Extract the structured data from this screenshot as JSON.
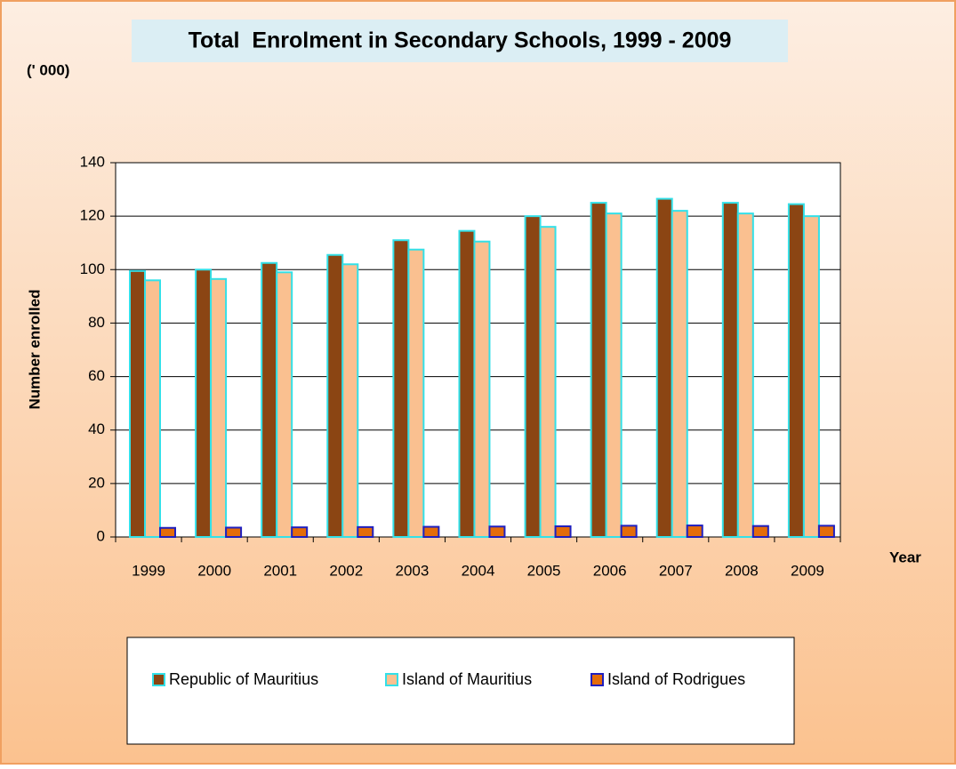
{
  "chart_data": {
    "type": "bar",
    "title": "Total  Enrolment in Secondary Schools, 1999 - 2009",
    "unit_label": "(' 000)",
    "y_label": "Number enrolled",
    "x_label": "Year",
    "categories": [
      "1999",
      "2000",
      "2001",
      "2002",
      "2003",
      "2004",
      "2005",
      "2006",
      "2007",
      "2008",
      "2009"
    ],
    "series": [
      {
        "name": "Republic of Mauritius",
        "color": "#8b4513",
        "edgecolor": "#33e0e8",
        "values": [
          99.5,
          100,
          102.5,
          105.5,
          111,
          114.5,
          120,
          125,
          126.5,
          125,
          124.5
        ]
      },
      {
        "name": "Island of Mauritius",
        "color": "#fac090",
        "edgecolor": "#33e0e8",
        "values": [
          96,
          96.5,
          99,
          102,
          107.5,
          110.5,
          116,
          121,
          122,
          121,
          120
        ]
      },
      {
        "name": "Island of Rodrigues",
        "color": "#e46c0a",
        "edgecolor": "#1f1fbf",
        "values": [
          3.4,
          3.5,
          3.6,
          3.7,
          3.8,
          3.9,
          4.0,
          4.2,
          4.3,
          4.1,
          4.2
        ]
      }
    ],
    "ylim": [
      0,
      140
    ],
    "yticks": [
      0,
      20,
      40,
      60,
      80,
      100,
      120,
      140
    ],
    "grid": true
  }
}
